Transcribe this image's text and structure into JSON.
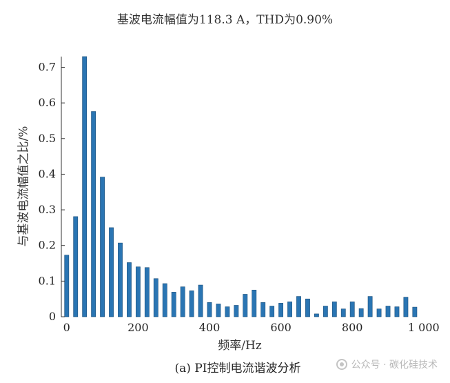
{
  "caption": "(a) PI控制电流谐波分析",
  "watermark": "公众号 · 碳化硅技术",
  "chart_data": {
    "type": "bar",
    "title": "基波电流幅值为118.3 A，THD为0.90%",
    "xlabel": "频率/Hz",
    "ylabel": "与基波电流幅值之比/%",
    "xlim": [
      -15,
      1010
    ],
    "ylim": [
      0,
      0.73
    ],
    "xticks": [
      0,
      200,
      400,
      600,
      800,
      1000
    ],
    "xtick_labels": [
      "0",
      "200",
      "400",
      "600",
      "800",
      "1 000"
    ],
    "yticks": [
      0,
      0.1,
      0.2,
      0.3,
      0.4,
      0.5,
      0.6,
      0.7
    ],
    "ytick_labels": [
      "0",
      "0.1",
      "0.2",
      "0.3",
      "0.4",
      "0.5",
      "0.6",
      "0.7"
    ],
    "bar_color": "#2a75b3",
    "bar_width": 12,
    "x": [
      0,
      25,
      50,
      75,
      100,
      125,
      150,
      175,
      200,
      225,
      250,
      275,
      300,
      325,
      350,
      375,
      400,
      425,
      450,
      475,
      500,
      525,
      550,
      575,
      600,
      625,
      650,
      675,
      700,
      725,
      750,
      775,
      800,
      825,
      850,
      875,
      900,
      925,
      950,
      975
    ],
    "values": [
      0.173,
      0.281,
      0.73,
      0.576,
      0.392,
      0.25,
      0.207,
      0.152,
      0.14,
      0.138,
      0.107,
      0.093,
      0.069,
      0.084,
      0.073,
      0.089,
      0.04,
      0.036,
      0.028,
      0.032,
      0.063,
      0.075,
      0.04,
      0.03,
      0.038,
      0.042,
      0.057,
      0.05,
      0.008,
      0.03,
      0.042,
      0.022,
      0.042,
      0.023,
      0.057,
      0.022,
      0.03,
      0.028,
      0.055,
      0.027
    ]
  }
}
